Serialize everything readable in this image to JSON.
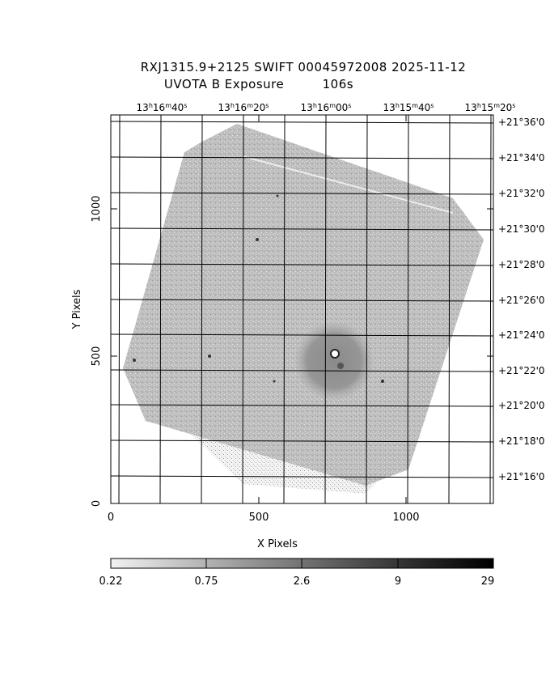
{
  "title": {
    "line1": "RXJ1315.9+2125 SWIFT 00045972008 2025-11-12",
    "line2": "UVOTA B Exposure         106s"
  },
  "axes": {
    "x_label": "X Pixels",
    "y_label": "Y Pixels",
    "x_ticks": [
      "0",
      "500",
      "1000"
    ],
    "y_ticks": [
      "0",
      "500",
      "1000"
    ]
  },
  "ra_ticks": [
    {
      "h": "13",
      "m": "16",
      "s": "40"
    },
    {
      "h": "13",
      "m": "16",
      "s": "20"
    },
    {
      "h": "13",
      "m": "16",
      "s": "00"
    },
    {
      "h": "13",
      "m": "15",
      "s": "40"
    },
    {
      "h": "13",
      "m": "15",
      "s": "20"
    }
  ],
  "dec_ticks": [
    "+21°36'0",
    "+21°34'0",
    "+21°32'0",
    "+21°30'0",
    "+21°28'0",
    "+21°26'0",
    "+21°24'0",
    "+21°22'0",
    "+21°20'0",
    "+21°18'0",
    "+21°16'0"
  ],
  "colorbar": {
    "labels": [
      "0.22",
      "0.75",
      "2.6",
      "9",
      "29"
    ],
    "gradient": [
      "#f2f2f2",
      "#bfbfbf",
      "#8c8c8c",
      "#5a5a5a",
      "#2a2a2a",
      "#000000"
    ]
  },
  "colors": {
    "exposure_fill": "#b4b4b4",
    "exposure_dark": "#909090",
    "grid": "#000000"
  },
  "chart_data": {
    "type": "heatmap",
    "xlim": [
      0,
      1300
    ],
    "ylim": [
      0,
      1300
    ],
    "colorbar_range": [
      0.22,
      29
    ]
  }
}
